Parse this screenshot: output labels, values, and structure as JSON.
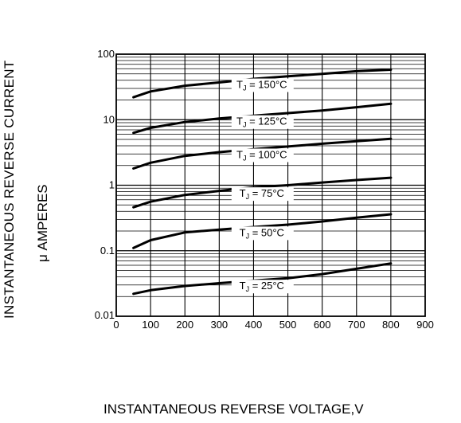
{
  "chart_data": {
    "type": "line",
    "title": "",
    "xlabel": "INSTANTANEOUS REVERSE VOLTAGE,V",
    "ylabel": "INSTANTANEOUS REVERSE CURRENT",
    "ylabel_unit": "μ AMPERES",
    "xlim": [
      0,
      900
    ],
    "ylim": [
      0.01,
      100
    ],
    "yscale": "log",
    "grid": true,
    "x_ticks": [
      0,
      100,
      200,
      300,
      400,
      500,
      600,
      700,
      800,
      900
    ],
    "x_tick_labels": [
      "0",
      "100",
      "200",
      "300",
      "400",
      "500",
      "600",
      "700",
      "800",
      "900"
    ],
    "y_ticks": [
      0.01,
      0.1,
      1,
      10,
      100
    ],
    "y_tick_labels": [
      "0.01",
      "0.1",
      "1",
      "10",
      "100"
    ],
    "series": [
      {
        "label_prefix": "T",
        "label_sub": "J",
        "label_suffix": " = 150°C",
        "label_x": 540,
        "x": [
          50,
          100,
          200,
          300,
          400,
          500,
          600,
          700,
          800
        ],
        "y": [
          22,
          27,
          33,
          37,
          42,
          46,
          50,
          55,
          58
        ]
      },
      {
        "label_prefix": "T",
        "label_sub": "J",
        "label_suffix": " = 125°C",
        "label_x": 540,
        "x": [
          50,
          100,
          200,
          300,
          400,
          500,
          600,
          700,
          800
        ],
        "y": [
          6.3,
          7.5,
          9.2,
          10.4,
          11.5,
          12.6,
          13.8,
          15.5,
          17.5
        ]
      },
      {
        "label_prefix": "T",
        "label_sub": "J",
        "label_suffix": " = 100°C",
        "label_x": 540,
        "x": [
          50,
          100,
          200,
          300,
          400,
          500,
          600,
          700,
          800
        ],
        "y": [
          1.8,
          2.2,
          2.8,
          3.2,
          3.55,
          3.9,
          4.3,
          4.7,
          5.1
        ]
      },
      {
        "label_prefix": "T",
        "label_sub": "J",
        "label_suffix": " = 75°C",
        "label_x": 540,
        "x": [
          50,
          100,
          200,
          300,
          400,
          500,
          600,
          700,
          800
        ],
        "y": [
          0.46,
          0.56,
          0.71,
          0.82,
          0.93,
          1.0,
          1.1,
          1.2,
          1.3
        ]
      },
      {
        "label_prefix": "T",
        "label_sub": "J",
        "label_suffix": " = 50°C",
        "label_x": 540,
        "x": [
          50,
          100,
          200,
          300,
          400,
          500,
          600,
          700,
          800
        ],
        "y": [
          0.11,
          0.145,
          0.19,
          0.21,
          0.23,
          0.25,
          0.28,
          0.32,
          0.36
        ]
      },
      {
        "label_prefix": "T",
        "label_sub": "J",
        "label_suffix": " = 25°C",
        "label_x": 540,
        "x": [
          50,
          100,
          200,
          300,
          400,
          500,
          600,
          700,
          800
        ],
        "y": [
          0.022,
          0.025,
          0.029,
          0.032,
          0.035,
          0.038,
          0.044,
          0.053,
          0.064
        ]
      }
    ]
  }
}
